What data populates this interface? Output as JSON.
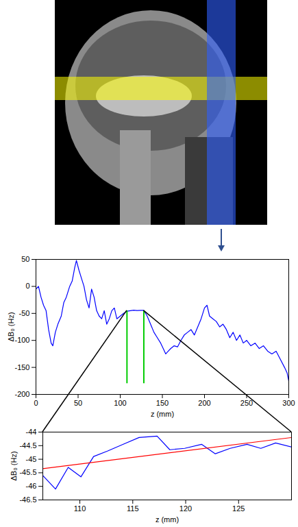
{
  "chart_data": [
    {
      "type": "line",
      "xlabel": "z (mm)",
      "ylabel": "ΔB₀ (Hz)",
      "xlim": [
        0,
        300
      ],
      "xticks": [
        0,
        50,
        100,
        150,
        200,
        250,
        300
      ],
      "ylim": [
        -200,
        50
      ],
      "yticks": [
        -200,
        -150,
        -100,
        -50,
        0,
        50
      ],
      "series": [
        {
          "color": "#0000ff",
          "x": [
            0,
            3,
            6,
            9,
            12,
            15,
            18,
            20,
            23,
            26,
            30,
            33,
            36,
            40,
            43,
            46,
            48,
            51,
            54,
            57,
            60,
            63,
            66,
            69,
            72,
            75,
            78,
            81,
            84,
            87,
            90,
            93,
            96,
            100,
            104,
            108,
            112,
            116,
            120,
            124,
            128,
            132,
            136,
            140,
            144,
            148,
            151,
            154,
            157,
            160,
            164,
            168,
            172,
            176,
            180,
            184,
            188,
            192,
            196,
            200,
            203,
            206,
            210,
            214,
            218,
            222,
            226,
            230,
            234,
            238,
            242,
            246,
            250,
            255,
            260,
            265,
            270,
            275,
            280,
            285,
            290,
            295,
            298,
            300
          ],
          "values": [
            -5,
            0,
            -20,
            -35,
            -45,
            -80,
            -105,
            -110,
            -85,
            -70,
            -55,
            -30,
            -20,
            0,
            10,
            35,
            48,
            30,
            15,
            0,
            -25,
            -40,
            -5,
            -20,
            -45,
            -55,
            -60,
            -45,
            -70,
            -60,
            -45,
            -40,
            -60,
            -55,
            -50,
            -46,
            -45,
            -44,
            -44.6,
            -44.5,
            -44.5,
            -55,
            -70,
            -85,
            -95,
            -105,
            -115,
            -125,
            -120,
            -115,
            -110,
            -112,
            -100,
            -90,
            -85,
            -80,
            -90,
            -75,
            -60,
            -40,
            -35,
            -55,
            -60,
            -65,
            -75,
            -70,
            -80,
            -95,
            -85,
            -100,
            -90,
            -105,
            -100,
            -110,
            -105,
            -115,
            -110,
            -120,
            -125,
            -120,
            -135,
            -150,
            -160,
            -175
          ]
        }
      ],
      "zoom_region": {
        "x": [
          108,
          128
        ],
        "y": [
          -180,
          -45
        ],
        "color": "#00cc00"
      }
    },
    {
      "type": "line",
      "xlabel": "z (mm)",
      "ylabel": "ΔB₀ (Hz)",
      "xlim": [
        106.5,
        130
      ],
      "xticks": [
        110,
        115,
        120,
        125
      ],
      "ylim": [
        -46.5,
        -44
      ],
      "yticks": [
        -46.5,
        -46,
        -45.5,
        -45,
        -44.5,
        -44
      ],
      "series": [
        {
          "color": "#0000ff",
          "x": [
            106.5,
            107.7,
            108.9,
            110.1,
            111.3,
            112.6,
            114.1,
            115.6,
            117.3,
            118.5,
            119.9,
            121.5,
            122.8,
            124.2,
            125.8,
            127.1,
            128.5,
            130
          ],
          "values": [
            -45.6,
            -46.1,
            -45.3,
            -45.65,
            -44.9,
            -44.7,
            -44.45,
            -44.2,
            -44.15,
            -44.65,
            -44.6,
            -44.45,
            -44.8,
            -44.6,
            -44.45,
            -44.6,
            -44.4,
            -44.55
          ]
        },
        {
          "color": "#ff0000",
          "x": [
            106.5,
            130
          ],
          "values": [
            -45.35,
            -44.2
          ]
        }
      ]
    }
  ]
}
